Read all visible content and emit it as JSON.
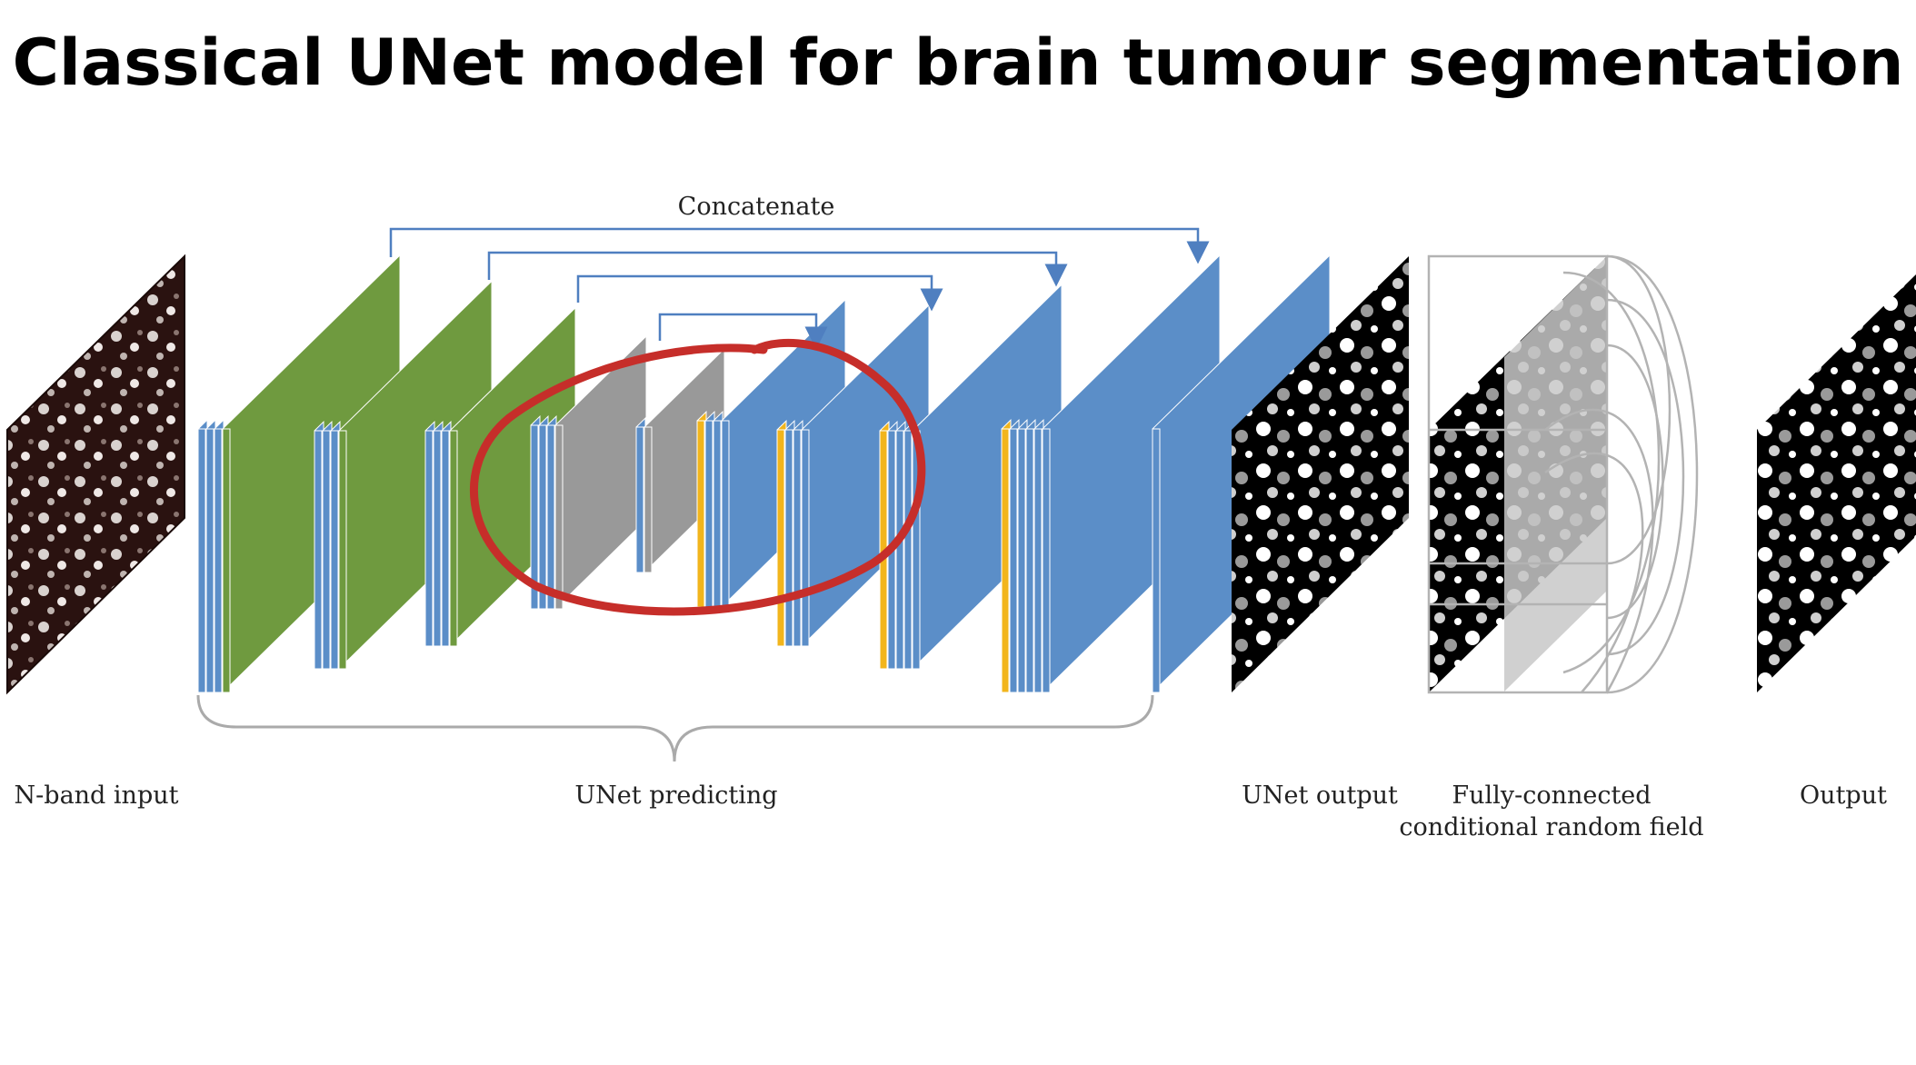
{
  "title": "Classical UNet model for brain tumour segmentation",
  "diagram": {
    "concat_label": "Concatenate",
    "labels": {
      "input": "N-band input",
      "unet": "UNet  predicting",
      "unet_output": "UNet output",
      "crf_line1": "Fully-connected",
      "crf_line2": "conditional random field",
      "output": "Output"
    }
  },
  "colors": {
    "blue": "#5b8ec8",
    "green": "#6f9a3f",
    "gray": "#999999",
    "yellow": "#f2b51c",
    "annotation_red": "#c62e2a",
    "arrow": "#4f7fc0"
  }
}
